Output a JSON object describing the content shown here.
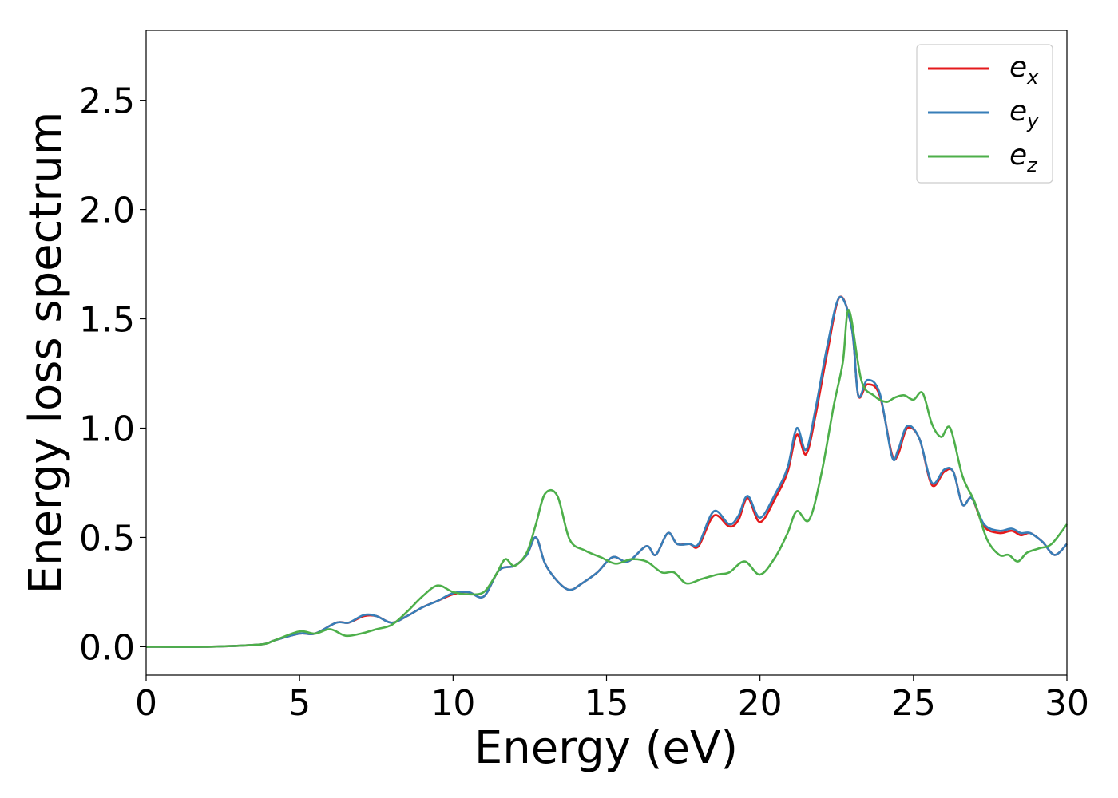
{
  "chart_data": {
    "type": "line",
    "title": "",
    "xlabel": "Energy (eV)",
    "ylabel": "Energy loss spectrum",
    "xlim": [
      0,
      30
    ],
    "ylim": [
      -0.13,
      2.82
    ],
    "xticks": [
      0,
      5,
      10,
      15,
      20,
      25,
      30
    ],
    "xtick_labels": [
      "0",
      "5",
      "10",
      "15",
      "20",
      "25",
      "30"
    ],
    "yticks": [
      0.0,
      0.5,
      1.0,
      1.5,
      2.0,
      2.5
    ],
    "ytick_labels": [
      "0.0",
      "0.5",
      "1.0",
      "1.5",
      "2.0",
      "2.5"
    ],
    "grid": false,
    "legend_position": "top-right",
    "series": [
      {
        "name": "e_x",
        "legend_base": "e",
        "legend_sub": "x",
        "color": "#e41a1c",
        "x": [
          0,
          2,
          3.7,
          4.2,
          5.0,
          5.5,
          6.2,
          6.6,
          7.1,
          7.5,
          8.0,
          8.5,
          9.0,
          9.5,
          10.0,
          10.5,
          11.0,
          11.5,
          12.0,
          12.4,
          12.7,
          13.0,
          13.4,
          13.8,
          14.2,
          14.7,
          15.2,
          15.7,
          16.3,
          16.6,
          17.0,
          17.3,
          17.7,
          18.0,
          18.5,
          19.0,
          19.3,
          19.6,
          20.0,
          20.5,
          20.9,
          21.2,
          21.5,
          21.8,
          22.2,
          22.6,
          23.0,
          23.2,
          23.5,
          23.9,
          24.3,
          24.5,
          24.8,
          25.2,
          25.6,
          26.0,
          26.3,
          26.6,
          26.9,
          27.3,
          27.8,
          28.2,
          28.5,
          28.8,
          29.2,
          29.6,
          30.0
        ],
        "y": [
          0.0,
          0.0,
          0.01,
          0.03,
          0.06,
          0.06,
          0.11,
          0.11,
          0.14,
          0.14,
          0.11,
          0.14,
          0.18,
          0.21,
          0.24,
          0.25,
          0.23,
          0.35,
          0.37,
          0.42,
          0.5,
          0.38,
          0.3,
          0.26,
          0.29,
          0.34,
          0.41,
          0.39,
          0.46,
          0.42,
          0.52,
          0.47,
          0.47,
          0.46,
          0.6,
          0.55,
          0.58,
          0.68,
          0.57,
          0.68,
          0.8,
          0.97,
          0.88,
          1.05,
          1.35,
          1.6,
          1.45,
          1.15,
          1.2,
          1.15,
          0.88,
          0.88,
          1.0,
          0.95,
          0.74,
          0.8,
          0.8,
          0.65,
          0.68,
          0.55,
          0.52,
          0.53,
          0.51,
          0.52,
          0.48,
          0.42,
          0.47
        ]
      },
      {
        "name": "e_y",
        "legend_base": "e",
        "legend_sub": "y",
        "color": "#377eb8",
        "x": [
          0,
          2,
          3.7,
          4.2,
          5.0,
          5.5,
          6.2,
          6.6,
          7.1,
          7.5,
          8.0,
          8.5,
          9.0,
          9.5,
          10.0,
          10.5,
          11.0,
          11.5,
          12.0,
          12.4,
          12.7,
          13.0,
          13.4,
          13.8,
          14.2,
          14.7,
          15.2,
          15.7,
          16.3,
          16.6,
          17.0,
          17.3,
          17.7,
          18.0,
          18.5,
          19.0,
          19.3,
          19.6,
          20.0,
          20.5,
          20.9,
          21.2,
          21.5,
          21.8,
          22.2,
          22.6,
          23.0,
          23.2,
          23.5,
          23.9,
          24.3,
          24.5,
          24.8,
          25.2,
          25.6,
          26.0,
          26.3,
          26.6,
          26.9,
          27.3,
          27.8,
          28.2,
          28.5,
          28.8,
          29.2,
          29.6,
          30.0
        ],
        "y": [
          0.0,
          0.0,
          0.01,
          0.03,
          0.06,
          0.06,
          0.11,
          0.11,
          0.145,
          0.14,
          0.11,
          0.14,
          0.18,
          0.21,
          0.245,
          0.25,
          0.23,
          0.35,
          0.37,
          0.42,
          0.5,
          0.38,
          0.3,
          0.26,
          0.29,
          0.34,
          0.41,
          0.39,
          0.46,
          0.42,
          0.52,
          0.47,
          0.47,
          0.47,
          0.62,
          0.56,
          0.6,
          0.69,
          0.59,
          0.7,
          0.82,
          1.0,
          0.9,
          1.08,
          1.38,
          1.6,
          1.45,
          1.15,
          1.22,
          1.16,
          0.87,
          0.9,
          1.01,
          0.95,
          0.75,
          0.81,
          0.8,
          0.65,
          0.68,
          0.56,
          0.53,
          0.54,
          0.52,
          0.52,
          0.48,
          0.42,
          0.47
        ]
      },
      {
        "name": "e_z",
        "legend_base": "e",
        "legend_sub": "z",
        "color": "#4daf4a",
        "x": [
          0,
          2,
          3.7,
          4.2,
          5.0,
          5.5,
          6.0,
          6.5,
          7.0,
          7.5,
          8.0,
          8.5,
          9.0,
          9.5,
          10.0,
          10.5,
          11.0,
          11.4,
          11.7,
          12.0,
          12.4,
          12.7,
          13.0,
          13.4,
          13.8,
          14.3,
          14.8,
          15.3,
          15.8,
          16.3,
          16.8,
          17.2,
          17.6,
          18.1,
          18.6,
          19.0,
          19.5,
          20.0,
          20.5,
          20.9,
          21.2,
          21.6,
          22.0,
          22.4,
          22.7,
          22.9,
          23.3,
          23.7,
          24.1,
          24.4,
          24.7,
          25.0,
          25.3,
          25.6,
          25.9,
          26.2,
          26.6,
          27.0,
          27.4,
          27.8,
          28.1,
          28.4,
          28.7,
          29.1,
          29.5,
          30.0
        ],
        "y": [
          0.0,
          0.0,
          0.01,
          0.03,
          0.07,
          0.06,
          0.08,
          0.05,
          0.06,
          0.08,
          0.1,
          0.16,
          0.23,
          0.28,
          0.25,
          0.24,
          0.25,
          0.33,
          0.4,
          0.37,
          0.43,
          0.56,
          0.7,
          0.69,
          0.49,
          0.44,
          0.41,
          0.38,
          0.4,
          0.39,
          0.34,
          0.34,
          0.29,
          0.31,
          0.33,
          0.34,
          0.39,
          0.33,
          0.41,
          0.52,
          0.62,
          0.58,
          0.79,
          1.1,
          1.3,
          1.54,
          1.22,
          1.15,
          1.12,
          1.14,
          1.15,
          1.13,
          1.16,
          1.02,
          0.96,
          1.0,
          0.78,
          0.66,
          0.49,
          0.42,
          0.42,
          0.39,
          0.43,
          0.45,
          0.47,
          0.56
        ]
      }
    ]
  }
}
